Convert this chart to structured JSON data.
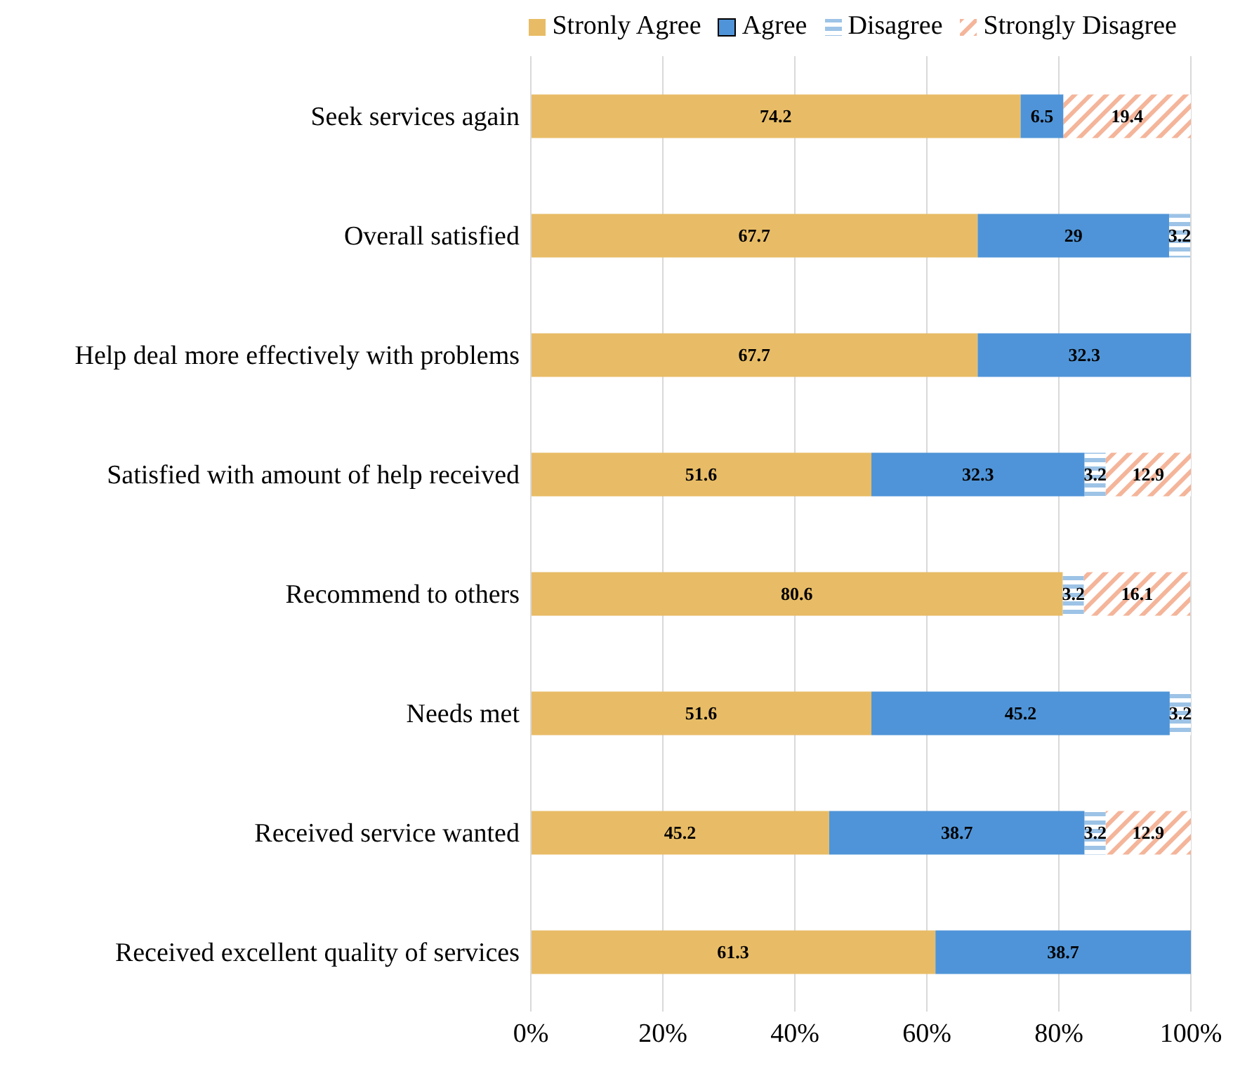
{
  "chart_data": {
    "type": "bar",
    "orientation": "horizontal",
    "stacked": true,
    "data_labels": true,
    "grid": "x",
    "legend": "top right",
    "categories": [
      "Seek services again",
      "Overall satisfied",
      "Help deal more effectively with problems",
      "Satisfied with amount of help received",
      "Recommend to others",
      "Needs met",
      "Received service wanted",
      "Received excellent quality of services"
    ],
    "series": [
      {
        "name": "Stronly Agree",
        "color": "#e8bc66",
        "values": [
          74.2,
          67.7,
          67.7,
          51.6,
          80.6,
          51.6,
          45.2,
          61.3
        ]
      },
      {
        "name": "Agree",
        "color": "#4f94d8",
        "values": [
          6.5,
          29,
          32.3,
          32.3,
          null,
          45.2,
          38.7,
          38.7
        ]
      },
      {
        "name": "Disagree",
        "color": "#9dc3e6",
        "values": [
          null,
          3.2,
          null,
          3.2,
          3.2,
          3.2,
          3.2,
          null
        ]
      },
      {
        "name": "Strongly Disagree",
        "color": "#f4b59a",
        "values": [
          19.4,
          null,
          null,
          12.9,
          16.1,
          null,
          12.9,
          null
        ]
      }
    ],
    "xlim": [
      0,
      100
    ],
    "xticks": [
      {
        "value": 0,
        "label": "0%"
      },
      {
        "value": 20,
        "label": "20%"
      },
      {
        "value": 40,
        "label": "40%"
      },
      {
        "value": 60,
        "label": "60%"
      },
      {
        "value": 80,
        "label": "80%"
      },
      {
        "value": 100,
        "label": "100%"
      }
    ]
  }
}
